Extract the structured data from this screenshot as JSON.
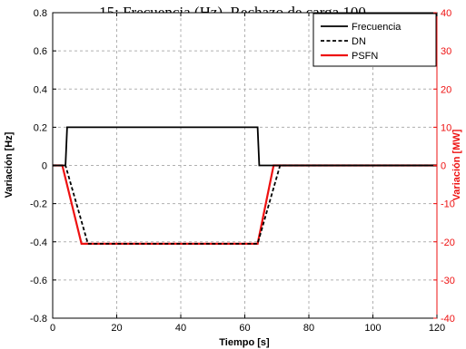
{
  "chart_data": {
    "type": "line",
    "title": "15: Frecuencia (Hz). Rechazo de carga 100",
    "xlabel": "Tiempo [s]",
    "ylabel_left": "Variación [Hz]",
    "ylabel_right": "Variación [MW]",
    "xlim": [
      0,
      120
    ],
    "ylim_left": [
      -0.8,
      0.8
    ],
    "ylim_right": [
      -40,
      40
    ],
    "x_ticks": [
      "0",
      "20",
      "40",
      "60",
      "80",
      "100",
      "120"
    ],
    "y_ticks_left": [
      "-0.8",
      "-0.6",
      "-0.4",
      "-0.2",
      "0",
      "0.2",
      "0.4",
      "0.6",
      "0.8"
    ],
    "y_ticks_right": [
      "-40",
      "-30",
      "-20",
      "-10",
      "0",
      "10",
      "20",
      "30",
      "40"
    ],
    "grid": true,
    "legend_position": "top-right",
    "colors": {
      "left_axis": "#000000",
      "right_axis": "#ee1111"
    },
    "series": [
      {
        "name": "Frecuencia",
        "axis": "left",
        "color": "#000000",
        "style": "solid",
        "x": [
          0,
          4,
          4.5,
          64,
          64.5,
          120
        ],
        "y": [
          0,
          0,
          0.2,
          0.2,
          0,
          0
        ]
      },
      {
        "name": "DN",
        "axis": "right",
        "color": "#000000",
        "style": "dashed",
        "x": [
          0,
          4,
          11,
          64,
          71,
          120
        ],
        "y": [
          0,
          0,
          -20.5,
          -20.5,
          0,
          0
        ]
      },
      {
        "name": "PSFN",
        "axis": "right",
        "color": "#ee1111",
        "style": "solid",
        "x": [
          0,
          3,
          9,
          64,
          69,
          120
        ],
        "y": [
          0,
          0,
          -20.5,
          -20.5,
          0,
          0
        ]
      }
    ]
  }
}
